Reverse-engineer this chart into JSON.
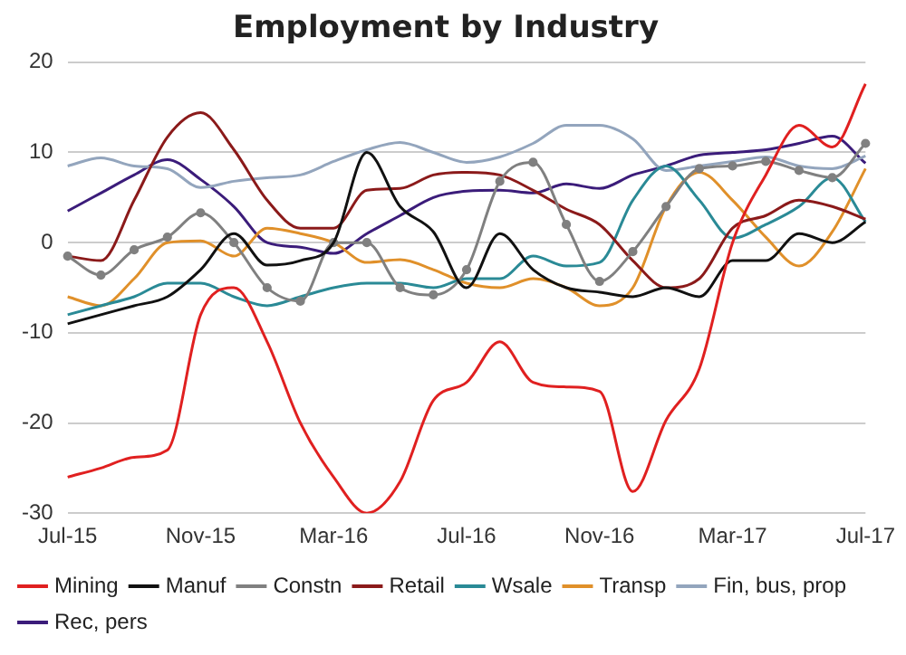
{
  "chart_data": {
    "type": "line",
    "title": "Employment by Industry",
    "categories": [
      "Jul-15",
      null,
      null,
      null,
      "Nov-15",
      null,
      null,
      null,
      "Mar-16",
      null,
      null,
      null,
      "Jul-16",
      null,
      null,
      null,
      "Nov-16",
      null,
      null,
      null,
      "Mar-17",
      null,
      null,
      null,
      "Jul-17"
    ],
    "series": [
      {
        "name": "Mining",
        "color": "#e02020",
        "marker": "none",
        "values": [
          -26,
          -25,
          -23.8,
          -23,
          -8,
          -5,
          -11,
          -20,
          -26,
          -30,
          -26.5,
          -17.5,
          -15.5,
          -11,
          -15.5,
          -16,
          -16.5,
          -27.6,
          -19.7,
          -14,
          0,
          7.5,
          13,
          10.6,
          17.6
        ]
      },
      {
        "name": "Manuf",
        "color": "#111111",
        "marker": "none",
        "values": [
          -9,
          -8,
          -7,
          -6,
          -3,
          1,
          -2.5,
          -2,
          0,
          10,
          4,
          1.2,
          -5,
          1,
          -3,
          -5,
          -5.5,
          -6,
          -5,
          -6,
          -2,
          -2,
          1,
          0,
          2.3
        ]
      },
      {
        "name": "Constn",
        "color": "#808080",
        "marker": "circle",
        "values": [
          -1.5,
          -3.6,
          -0.8,
          0.6,
          3.3,
          0,
          -5,
          -6.5,
          0,
          0,
          -5,
          -5.8,
          -3,
          6.8,
          8.9,
          2,
          -4.3,
          -1,
          4,
          8.2,
          8.5,
          9,
          8,
          7.2,
          11
        ]
      },
      {
        "name": "Retail",
        "color": "#8b1a1a",
        "marker": "none",
        "values": [
          -1.5,
          -2,
          4.7,
          11.7,
          14.4,
          10.3,
          4.7,
          1.6,
          1.6,
          5.8,
          6,
          7.5,
          7.8,
          7.5,
          5.8,
          3.7,
          2,
          -2,
          -5,
          -4,
          1.6,
          3,
          4.7,
          4,
          2.6
        ]
      },
      {
        "name": "Wsale",
        "color": "#2a8a96",
        "marker": "none",
        "values": [
          -8,
          -7,
          -6,
          -4.5,
          -4.5,
          -6,
          -7,
          -6,
          -5,
          -4.5,
          -4.5,
          -5,
          -4,
          -4,
          -1.5,
          -2.6,
          -2.2,
          4.7,
          8.5,
          4.7,
          0.5,
          2,
          4,
          7.2,
          2.3
        ]
      },
      {
        "name": "Transp",
        "color": "#e0902a",
        "marker": "none",
        "values": [
          -6,
          -7,
          -4,
          0,
          0.2,
          -1.5,
          1.6,
          1,
          0,
          -2.2,
          -1.9,
          -3,
          -4.5,
          -5,
          -4,
          -5,
          -7,
          -5,
          4,
          7.8,
          4.7,
          0.6,
          -2.6,
          1.2,
          8.2
        ]
      },
      {
        "name": "Fin, bus, prop",
        "color": "#93a5bd",
        "marker": "none",
        "values": [
          8.5,
          9.4,
          8.5,
          8.2,
          6.1,
          6.8,
          7.2,
          7.5,
          9,
          10.3,
          11.1,
          10,
          8.9,
          9.5,
          11,
          13,
          13,
          11.5,
          8,
          8.5,
          9,
          9.5,
          8.5,
          8.2,
          9.6
        ]
      },
      {
        "name": "Rec, pers",
        "color": "#3b1c7a",
        "marker": "none",
        "values": [
          3.5,
          5.5,
          7.5,
          9.2,
          7,
          4,
          0,
          -0.5,
          -1.2,
          1,
          3,
          5,
          5.7,
          5.8,
          5.5,
          6.5,
          6,
          7.5,
          8.5,
          9.7,
          10,
          10.3,
          11,
          11.8,
          8.8
        ]
      }
    ],
    "ylim": [
      -30,
      20
    ],
    "yticks": [
      -30,
      -20,
      -10,
      0,
      10,
      20
    ],
    "grid": "y",
    "legend": "bottom"
  }
}
